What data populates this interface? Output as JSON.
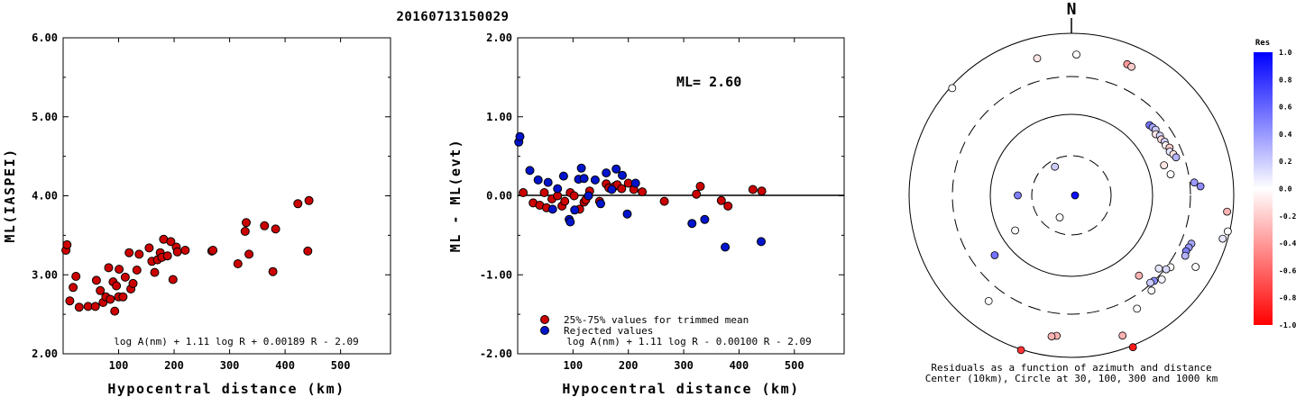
{
  "title": "20160713150029",
  "colors": {
    "red": "#cc0000",
    "blue": "#0014cc",
    "axis": "#000000"
  },
  "chart_data": [
    {
      "type": "scatter",
      "title": "",
      "xlabel": "Hypocentral distance (km)",
      "ylabel": "ML(IASPEI)",
      "xlim": [
        0,
        590
      ],
      "ylim": [
        2.0,
        6.0
      ],
      "xticks": [
        "100",
        "200",
        "300",
        "400",
        "500"
      ],
      "yticks": [
        "2.00",
        "3.00",
        "4.00",
        "5.00",
        "6.00"
      ],
      "formula": "log A(nm) + 1.11 log R + 0.00189 R - 2.09",
      "series": [
        {
          "color": "#cc0000",
          "points": [
            [
              5,
              3.31
            ],
            [
              7,
              3.38
            ],
            [
              12,
              2.67
            ],
            [
              18,
              2.84
            ],
            [
              23,
              2.98
            ],
            [
              29,
              2.59
            ],
            [
              45,
              2.6
            ],
            [
              58,
              2.6
            ],
            [
              60,
              2.93
            ],
            [
              67,
              2.8
            ],
            [
              72,
              2.65
            ],
            [
              77,
              2.72
            ],
            [
              82,
              3.09
            ],
            [
              85,
              2.69
            ],
            [
              90,
              2.91
            ],
            [
              93,
              2.54
            ],
            [
              96,
              2.86
            ],
            [
              100,
              2.72
            ],
            [
              101,
              3.07
            ],
            [
              108,
              2.72
            ],
            [
              112,
              2.97
            ],
            [
              119,
              3.28
            ],
            [
              122,
              2.82
            ],
            [
              126,
              2.89
            ],
            [
              133,
              3.06
            ],
            [
              137,
              3.26
            ],
            [
              155,
              3.34
            ],
            [
              160,
              3.17
            ],
            [
              165,
              3.03
            ],
            [
              170,
              3.19
            ],
            [
              175,
              3.28
            ],
            [
              178,
              3.22
            ],
            [
              181,
              3.45
            ],
            [
              188,
              3.24
            ],
            [
              194,
              3.42
            ],
            [
              198,
              2.94
            ],
            [
              204,
              3.35
            ],
            [
              206,
              3.29
            ],
            [
              220,
              3.31
            ],
            [
              268,
              3.3
            ],
            [
              270,
              3.31
            ],
            [
              315,
              3.14
            ],
            [
              328,
              3.55
            ],
            [
              330,
              3.66
            ],
            [
              335,
              3.26
            ],
            [
              363,
              3.62
            ],
            [
              378,
              3.04
            ],
            [
              383,
              3.58
            ],
            [
              423,
              3.9
            ],
            [
              441,
              3.3
            ],
            [
              443,
              3.94
            ]
          ]
        }
      ]
    },
    {
      "type": "scatter",
      "title": "",
      "xlabel": "Hypocentral distance (km)",
      "ylabel": "ML - ML(evt)",
      "xlim": [
        0,
        590
      ],
      "ylim": [
        -2.0,
        2.0
      ],
      "xticks": [
        "100",
        "200",
        "300",
        "400",
        "500"
      ],
      "yticks": [
        "-2.00",
        "-1.00",
        "0.00",
        "1.00",
        "2.00"
      ],
      "annotation": "ML= 2.60",
      "formula": "log A(nm) + 1.11 log R - 0.00100 R - 2.09",
      "reference_line": 0.0,
      "series": [
        {
          "name": "25%-75% values for trimmed mean",
          "color": "#cc0000",
          "points": [
            [
              10,
              0.04
            ],
            [
              28,
              -0.09
            ],
            [
              40,
              -0.12
            ],
            [
              48,
              0.04
            ],
            [
              52,
              -0.15
            ],
            [
              62,
              -0.04
            ],
            [
              72,
              0.0
            ],
            [
              80,
              -0.13
            ],
            [
              85,
              -0.07
            ],
            [
              95,
              0.04
            ],
            [
              102,
              0.0
            ],
            [
              112,
              -0.17
            ],
            [
              120,
              -0.08
            ],
            [
              123,
              -0.05
            ],
            [
              130,
              0.06
            ],
            [
              148,
              -0.07
            ],
            [
              160,
              0.15
            ],
            [
              165,
              0.1
            ],
            [
              175,
              0.12
            ],
            [
              180,
              0.14
            ],
            [
              188,
              0.09
            ],
            [
              200,
              0.16
            ],
            [
              210,
              0.08
            ],
            [
              225,
              0.05
            ],
            [
              265,
              -0.07
            ],
            [
              323,
              0.02
            ],
            [
              330,
              0.12
            ],
            [
              368,
              -0.06
            ],
            [
              380,
              -0.13
            ],
            [
              425,
              0.08
            ],
            [
              441,
              0.06
            ]
          ]
        },
        {
          "name": "Rejected values",
          "color": "#0014cc",
          "points": [
            [
              2,
              0.68
            ],
            [
              4,
              0.75
            ],
            [
              22,
              0.32
            ],
            [
              37,
              0.2
            ],
            [
              55,
              0.17
            ],
            [
              63,
              -0.17
            ],
            [
              72,
              0.09
            ],
            [
              83,
              0.25
            ],
            [
              93,
              -0.3
            ],
            [
              95,
              -0.33
            ],
            [
              103,
              -0.18
            ],
            [
              110,
              0.21
            ],
            [
              115,
              0.35
            ],
            [
              120,
              0.22
            ],
            [
              128,
              0.0
            ],
            [
              140,
              0.2
            ],
            [
              150,
              -0.1
            ],
            [
              160,
              0.29
            ],
            [
              170,
              0.08
            ],
            [
              178,
              0.34
            ],
            [
              189,
              0.26
            ],
            [
              198,
              -0.23
            ],
            [
              213,
              0.16
            ],
            [
              315,
              -0.35
            ],
            [
              338,
              -0.3
            ],
            [
              375,
              -0.65
            ],
            [
              440,
              -0.58
            ]
          ]
        }
      ]
    },
    {
      "type": "scatter",
      "title": "",
      "polar": true,
      "north_label": "N",
      "caption_line1": "Residuals as a function of azimuth and distance",
      "caption_line2": "Center (10km), Circle at 30, 100, 300 and 1000 km",
      "circle_distances_km": [
        30,
        100,
        300,
        1000
      ],
      "colorbar": {
        "label": "Res",
        "ticks": [
          "1.0",
          "0.8",
          "0.6",
          "0.4",
          "0.2",
          "0.0",
          "-0.2",
          "-0.4",
          "-0.6",
          "-0.8",
          "-1.0"
        ],
        "max_color": "#0000ff",
        "zero_color": "#ffffff",
        "min_color": "#ff0000"
      },
      "stations": [
        {
          "azimuth_deg": 90,
          "distance_km": 5,
          "residual": 0.95
        },
        {
          "azimuth_deg": 208,
          "distance_km": 20,
          "residual": 0.0
        },
        {
          "azimuth_deg": 330,
          "distance_km": 25,
          "residual": 0.2
        },
        {
          "azimuth_deg": 270,
          "distance_km": 45,
          "residual": 0.5
        },
        {
          "azimuth_deg": 238,
          "distance_km": 65,
          "residual": -0.02
        },
        {
          "azimuth_deg": 232,
          "distance_km": 160,
          "residual": 0.55
        },
        {
          "azimuth_deg": 218,
          "distance_km": 460,
          "residual": 0.0
        },
        {
          "azimuth_deg": 312,
          "distance_km": 950,
          "residual": 0.0
        },
        {
          "azimuth_deg": 346,
          "distance_km": 560,
          "residual": -0.1
        },
        {
          "azimuth_deg": 2,
          "distance_km": 555,
          "residual": 0.0
        },
        {
          "azimuth_deg": 23,
          "distance_km": 580,
          "residual": -0.4
        },
        {
          "azimuth_deg": 25,
          "distance_km": 570,
          "residual": -0.2
        },
        {
          "azimuth_deg": 48,
          "distance_km": 200,
          "residual": 0.55
        },
        {
          "azimuth_deg": 50,
          "distance_km": 205,
          "residual": 0.35
        },
        {
          "azimuth_deg": 52,
          "distance_km": 210,
          "residual": 0.2
        },
        {
          "azimuth_deg": 54,
          "distance_km": 195,
          "residual": -0.1
        },
        {
          "azimuth_deg": 56,
          "distance_km": 210,
          "residual": 0.15
        },
        {
          "azimuth_deg": 58,
          "distance_km": 205,
          "residual": -0.15
        },
        {
          "azimuth_deg": 60,
          "distance_km": 215,
          "residual": 0.2
        },
        {
          "azimuth_deg": 62,
          "distance_km": 210,
          "residual": -0.05
        },
        {
          "azimuth_deg": 64,
          "distance_km": 225,
          "residual": -0.2
        },
        {
          "azimuth_deg": 66,
          "distance_km": 215,
          "residual": 0.1
        },
        {
          "azimuth_deg": 68,
          "distance_km": 230,
          "residual": -0.1
        },
        {
          "azimuth_deg": 70,
          "distance_km": 240,
          "residual": 0.3
        },
        {
          "azimuth_deg": 72,
          "distance_km": 160,
          "residual": -0.1
        },
        {
          "azimuth_deg": 78,
          "distance_km": 180,
          "residual": 0.0
        },
        {
          "azimuth_deg": 84,
          "distance_km": 340,
          "residual": 0.4
        },
        {
          "azimuth_deg": 86,
          "distance_km": 400,
          "residual": 0.45
        },
        {
          "azimuth_deg": 96,
          "distance_km": 850,
          "residual": -0.3
        },
        {
          "azimuth_deg": 103,
          "distance_km": 950,
          "residual": 0.0
        },
        {
          "azimuth_deg": 106,
          "distance_km": 870,
          "residual": 0.1
        },
        {
          "azimuth_deg": 112,
          "distance_km": 400,
          "residual": 0.35
        },
        {
          "azimuth_deg": 114,
          "distance_km": 390,
          "residual": 0.4
        },
        {
          "azimuth_deg": 116,
          "distance_km": 380,
          "residual": 0.5
        },
        {
          "azimuth_deg": 118,
          "distance_km": 395,
          "residual": 0.3
        },
        {
          "azimuth_deg": 120,
          "distance_km": 590,
          "residual": 0.0
        },
        {
          "azimuth_deg": 126,
          "distance_km": 330,
          "residual": 0.0
        },
        {
          "azimuth_deg": 128,
          "distance_km": 310,
          "residual": 0.15
        },
        {
          "azimuth_deg": 130,
          "distance_km": 260,
          "residual": 0.1
        },
        {
          "azimuth_deg": 133,
          "distance_km": 340,
          "residual": 0.05
        },
        {
          "azimuth_deg": 136,
          "distance_km": 300,
          "residual": 0.45
        },
        {
          "azimuth_deg": 138,
          "distance_km": 290,
          "residual": 0.2
        },
        {
          "azimuth_deg": 140,
          "distance_km": 350,
          "residual": 0.0
        },
        {
          "azimuth_deg": 140,
          "distance_km": 200,
          "residual": -0.3
        },
        {
          "azimuth_deg": 150,
          "distance_km": 420,
          "residual": 0.0
        },
        {
          "azimuth_deg": 158,
          "distance_km": 1050,
          "residual": -0.9
        },
        {
          "azimuth_deg": 160,
          "distance_km": 700,
          "residual": -0.3
        },
        {
          "azimuth_deg": 186,
          "distance_km": 560,
          "residual": -0.3
        },
        {
          "azimuth_deg": 188,
          "distance_km": 580,
          "residual": -0.3
        },
        {
          "azimuth_deg": 198,
          "distance_km": 1020,
          "residual": -0.8
        }
      ]
    }
  ]
}
